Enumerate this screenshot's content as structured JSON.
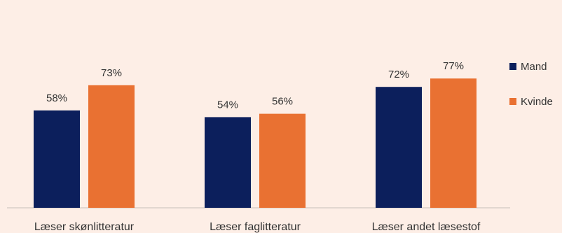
{
  "chart_data": {
    "type": "bar",
    "categories": [
      "Læser skønlitteratur",
      "Læser faglitteratur",
      "Læser andet læsestof"
    ],
    "series": [
      {
        "name": "Mand",
        "values": [
          58,
          54,
          72
        ],
        "labels": [
          "58%",
          "54%",
          "72%"
        ],
        "color": "#0c1f5c"
      },
      {
        "name": "Kvinde",
        "values": [
          73,
          56,
          77
        ],
        "labels": [
          "73%",
          "56%",
          "77%"
        ],
        "color": "#e97132"
      }
    ],
    "ylim": [
      0,
      100
    ],
    "legend_position": "right",
    "grid": false
  }
}
